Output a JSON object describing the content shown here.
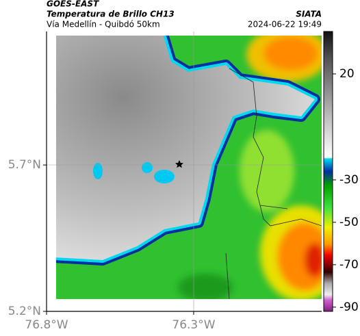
{
  "header": {
    "satellite": "GOES-EAST",
    "product": "Temperatura de Brillo CH13",
    "route": "Vía Medellín - Quibdó 50km",
    "source": "SIATA",
    "timestamp": "2024-06-22 19:49"
  },
  "map": {
    "lat_range": [
      5.2,
      6.156
    ],
    "lon_range": [
      -76.8,
      -75.865
    ],
    "lat_ticks": [
      {
        "value": 5.2,
        "label": "5.2°N"
      },
      {
        "value": 5.7,
        "label": "5.7°N"
      }
    ],
    "lon_ticks": [
      {
        "value": -76.8,
        "label": "76.8°W"
      },
      {
        "value": -76.3,
        "label": "76.3°W"
      }
    ]
  },
  "colorbar": {
    "range": [
      -92,
      40
    ],
    "ticks": [
      20,
      -30,
      -50,
      -70,
      -90
    ]
  }
}
